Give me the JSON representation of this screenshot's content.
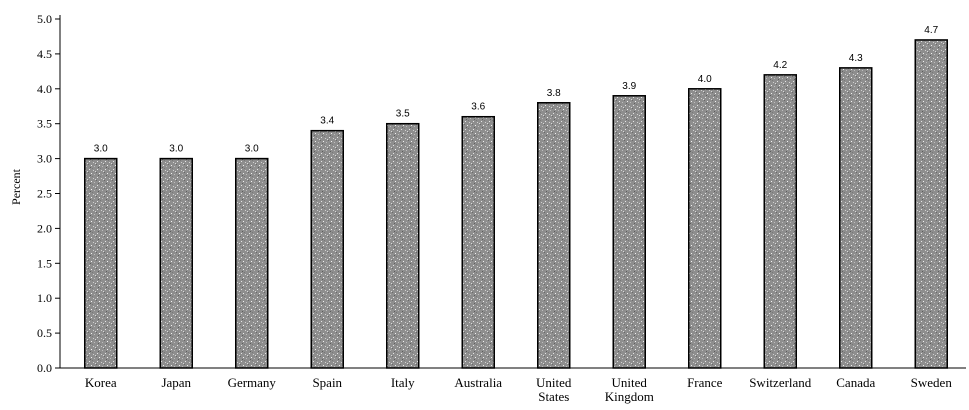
{
  "chart_data": {
    "type": "bar",
    "categories": [
      "Korea",
      "Japan",
      "Germany",
      "Spain",
      "Italy",
      "Australia",
      "United States",
      "United Kingdom",
      "France",
      "Switzerland",
      "Canada",
      "Sweden"
    ],
    "values": [
      3.0,
      3.0,
      3.0,
      3.4,
      3.5,
      3.6,
      3.8,
      3.9,
      4.0,
      4.2,
      4.3,
      4.7
    ],
    "value_labels": [
      "3.0",
      "3.0",
      "3.0",
      "3.4",
      "3.5",
      "3.6",
      "3.8",
      "3.9",
      "4.0",
      "4.2",
      "4.3",
      "4.7"
    ],
    "title": "",
    "xlabel": "",
    "ylabel": "Percent",
    "ylim": [
      0,
      5.0
    ],
    "yticks": [
      "0.0",
      "0.5",
      "1.0",
      "1.5",
      "2.0",
      "2.5",
      "3.0",
      "3.5",
      "4.0",
      "4.5",
      "5.0"
    ],
    "grid": false,
    "legend": "none",
    "bar_color": "#9a9a9a"
  }
}
